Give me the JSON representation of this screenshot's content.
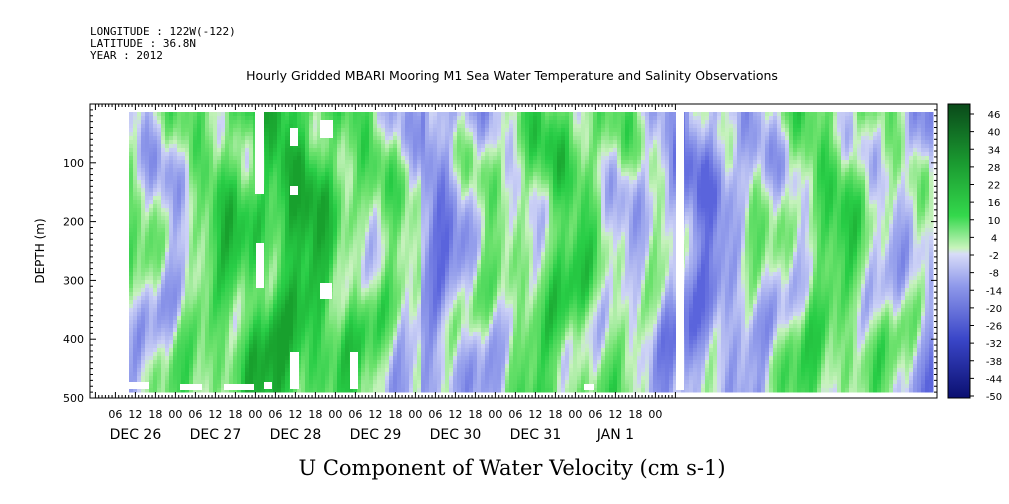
{
  "header": {
    "longitude": "LONGITUDE : 122W(-122)",
    "latitude": "LATITUDE : 36.8N",
    "year": "YEAR : 2012"
  },
  "chart_data": {
    "type": "heatmap",
    "title": "Hourly Gridded MBARI Mooring M1 Sea Water Temperature and Salinity Observations",
    "xlabel": "U Component of Water Velocity (cm s-1)",
    "ylabel": "DEPTH (m)",
    "x_axis": {
      "hour_ticks": [
        "06",
        "12",
        "18",
        "00",
        "06",
        "12",
        "18",
        "00",
        "06",
        "12",
        "18",
        "00",
        "06",
        "12",
        "18",
        "00",
        "06",
        "12",
        "18",
        "00",
        "06",
        "12",
        "18",
        "00",
        "06",
        "12",
        "18",
        "00"
      ],
      "day_labels": [
        "DEC 26",
        "DEC 27",
        "DEC 28",
        "DEC 29",
        "DEC 30",
        "DEC 31",
        "JAN  1"
      ]
    },
    "y_axis": {
      "ticks": [
        100,
        200,
        300,
        400,
        500
      ],
      "ylim": [
        500,
        0
      ],
      "data_range": [
        20,
        480
      ]
    },
    "colorbar": {
      "labels": [
        "46",
        "40",
        "34",
        "28",
        "22",
        "16",
        "10",
        "4",
        "-2",
        "-8",
        "-14",
        "-20",
        "-26",
        "-32",
        "-38",
        "-44",
        "-50"
      ],
      "range": [
        -50,
        50
      ]
    },
    "colors": {
      "strong_positive": "#0a4a1a",
      "positive": "#2fd34a",
      "light_positive": "#b6f0a8",
      "light_negative": "#c8cdf4",
      "negative": "#8d98e8",
      "strong_negative": "#0a0f70"
    }
  }
}
